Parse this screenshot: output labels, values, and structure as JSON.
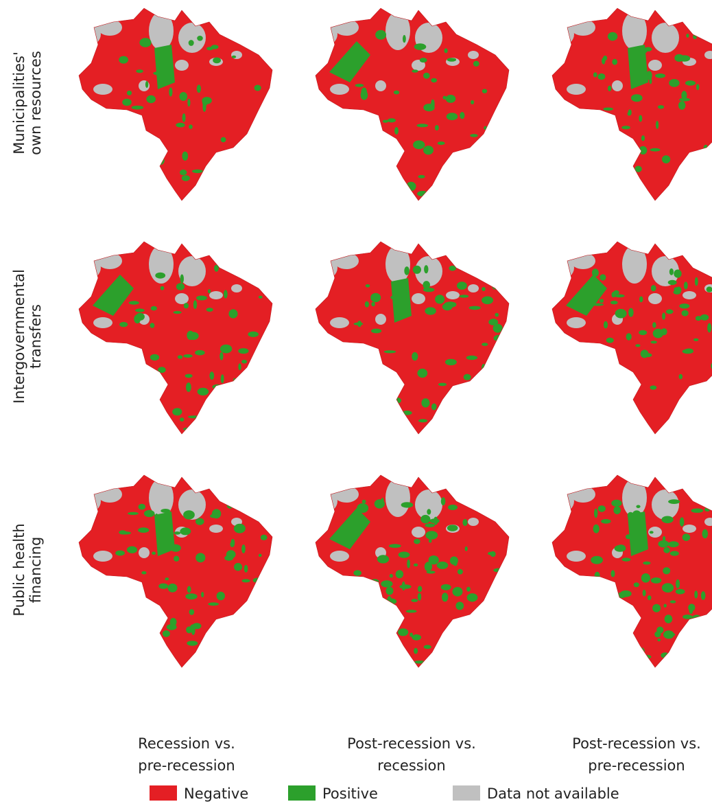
{
  "rows": [
    {
      "lines": [
        "Municipalities'",
        "own resources"
      ]
    },
    {
      "lines": [
        "Intergovernmental",
        "transfers"
      ]
    },
    {
      "lines": [
        "Public health",
        "financing"
      ]
    }
  ],
  "columns": [
    {
      "lines": [
        "Recession vs.",
        "pre-recession"
      ]
    },
    {
      "lines": [
        "Post-recession vs.",
        "recession"
      ]
    },
    {
      "lines": [
        "Post-recession vs.",
        "pre-recession"
      ]
    }
  ],
  "legend": [
    {
      "label": "Negative",
      "color": "#e41f24"
    },
    {
      "label": "Positive",
      "color": "#2ca02c"
    },
    {
      "label": "Data not available",
      "color": "#c0c0c0"
    }
  ]
}
